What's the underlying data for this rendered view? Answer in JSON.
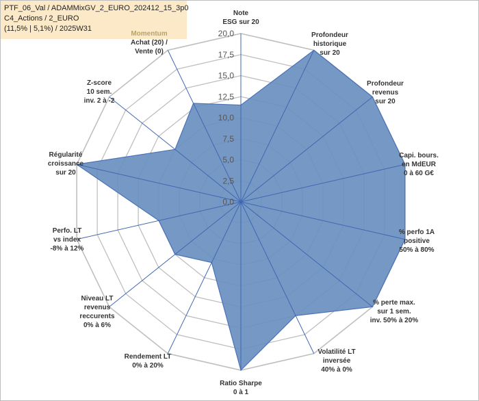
{
  "header": {
    "line1": "PTF_06_Val / ADAMMixGV_2_EURO_202412_15_3p0",
    "line2": "C4_Actions / 2_EURO",
    "line3": "(11,5% | 5,1%) / 2025W31"
  },
  "chart_data": {
    "type": "radar",
    "r_range": [
      0,
      20
    ],
    "r_ticks": [
      "0,0",
      "2,5",
      "5,0",
      "7,5",
      "10,0",
      "12,5",
      "15,0",
      "17,5",
      "20,0"
    ],
    "grid": true,
    "axes": [
      {
        "label": [
          "Note",
          "ESG sur 20"
        ],
        "value": 11.5
      },
      {
        "label": [
          "Profondeur",
          "historique",
          "sur 20"
        ],
        "value": 20
      },
      {
        "label": [
          "Profondeur",
          "revenus",
          "sur 20"
        ],
        "value": 20
      },
      {
        "label": [
          "Capi. bours.",
          "en MdEUR",
          "0 à 60 G€"
        ],
        "value": 20
      },
      {
        "label": [
          "% perfo 1A",
          "positive",
          "50% à 80%"
        ],
        "value": 20
      },
      {
        "label": [
          "% perte max.",
          "sur 1 sem.",
          "inv. 50% à 20%"
        ],
        "value": 20
      },
      {
        "label": [
          "Volatilité LT",
          "inversée",
          "40% à 0%"
        ],
        "value": 15
      },
      {
        "label": [
          "Ratio Sharpe",
          "0 à 1"
        ],
        "value": 20
      },
      {
        "label": [
          "Rendement LT",
          "0% à 20%"
        ],
        "value": 8
      },
      {
        "label": [
          "Niveau LT",
          "revenus",
          "reccurents",
          "0% à 6%"
        ],
        "value": 10
      },
      {
        "label": [
          "Perfo. LT",
          "vs index",
          "-8% à 12%"
        ],
        "value": 10
      },
      {
        "label": [
          "Régularité",
          "croissance",
          "sur 20"
        ],
        "value": 20
      },
      {
        "label": [
          "Z-score",
          "10 sem.",
          "inv. 2 à -2"
        ],
        "value": 10
      },
      {
        "label": [
          "Momentum",
          "Achat (20) /",
          "Vente (0)"
        ],
        "value": 13
      }
    ],
    "colors": {
      "fill": "#6a8fbf",
      "stroke": "#4a72b8",
      "axis": "#3f67b3",
      "grid": "#bfbfbf",
      "highlight_label": "#b9a26a"
    }
  }
}
